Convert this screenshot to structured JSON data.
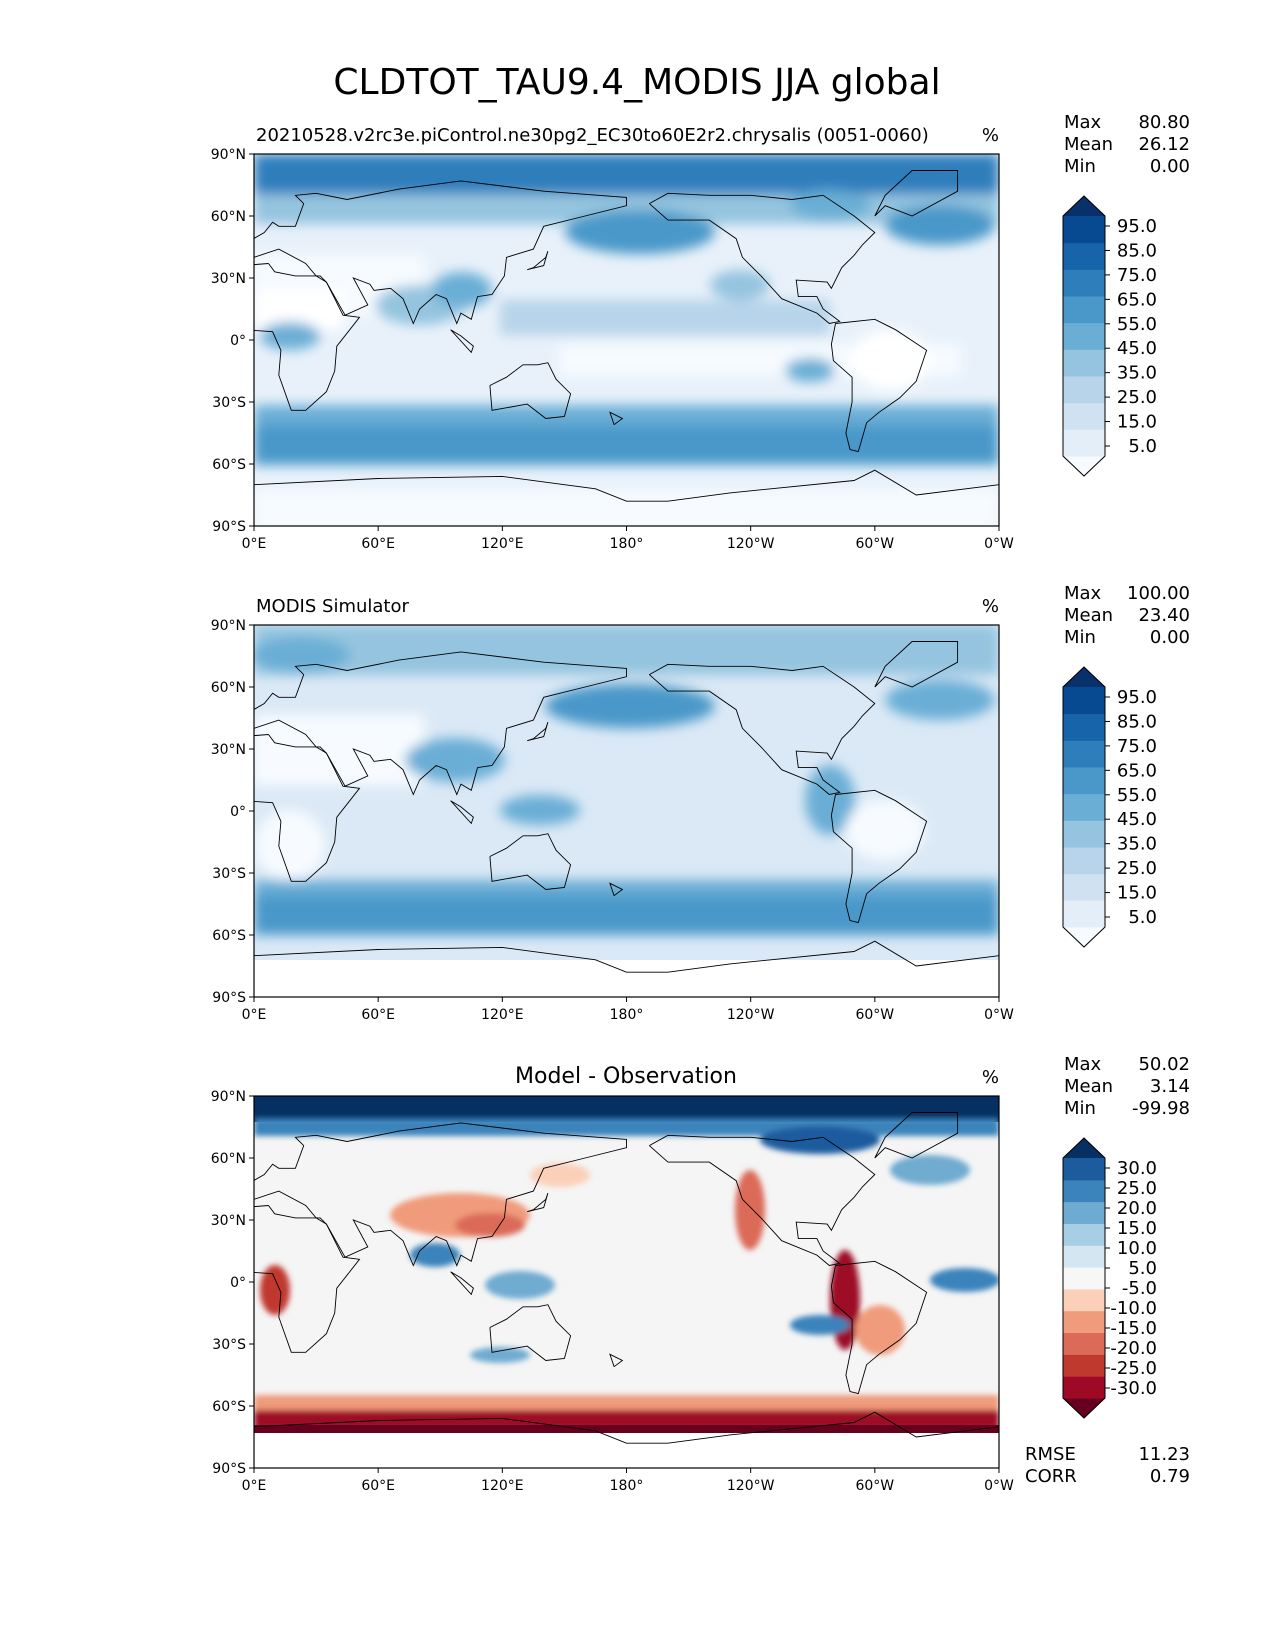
{
  "title": "CLDTOT_TAU9.4_MODIS JJA global",
  "lat_ticks": [
    "90°N",
    "60°N",
    "30°N",
    "0°",
    "30°S",
    "60°S",
    "90°S"
  ],
  "lon_ticks": [
    "0°E",
    "60°E",
    "120°E",
    "180°",
    "120°W",
    "60°W",
    "0°W"
  ],
  "stat_labels": {
    "max": "Max",
    "mean": "Mean",
    "min": "Min",
    "rmse": "RMSE",
    "corr": "CORR"
  },
  "panels": [
    {
      "id": "model",
      "left_title": "20210528.v2rc3e.piControl.ne30pg2_EC30to60E2r2.chrysalis (0051-0060)",
      "center_title": "",
      "units": "%",
      "stats": {
        "max": "80.80",
        "mean": "26.12",
        "min": "0.00"
      },
      "colorbar_labels": [
        "95.0",
        "85.0",
        "75.0",
        "65.0",
        "55.0",
        "45.0",
        "35.0",
        "25.0",
        "15.0",
        "5.0"
      ],
      "colorbar_colors": [
        "#f7fbff",
        "#e3eef9",
        "#d0e1f2",
        "#b7d4ea",
        "#94c4df",
        "#6aaed6",
        "#4a98c9",
        "#2e7ebc",
        "#1764ab",
        "#084a91",
        "#08306b"
      ]
    },
    {
      "id": "obs",
      "left_title": "MODIS Simulator",
      "center_title": "",
      "units": "%",
      "stats": {
        "max": "100.00",
        "mean": "23.40",
        "min": "0.00"
      },
      "colorbar_labels": [
        "95.0",
        "85.0",
        "75.0",
        "65.0",
        "55.0",
        "45.0",
        "35.0",
        "25.0",
        "15.0",
        "5.0"
      ],
      "colorbar_colors": [
        "#f7fbff",
        "#e3eef9",
        "#d0e1f2",
        "#b7d4ea",
        "#94c4df",
        "#6aaed6",
        "#4a98c9",
        "#2e7ebc",
        "#1764ab",
        "#084a91",
        "#08306b"
      ]
    },
    {
      "id": "diff",
      "left_title": "",
      "center_title": "Model - Observation",
      "units": "%",
      "stats": {
        "max": "50.02",
        "mean": "3.14",
        "min": "-99.98",
        "rmse": "11.23",
        "corr": "0.79"
      },
      "colorbar_labels": [
        "30.0",
        "25.0",
        "20.0",
        "15.0",
        "10.0",
        "5.0",
        "-5.0",
        "-10.0",
        "-15.0",
        "-20.0",
        "-25.0",
        "-30.0"
      ],
      "colorbar_colors": [
        "#67001f",
        "#9e0a26",
        "#c0392f",
        "#dc6a58",
        "#f09b7c",
        "#fbd0b9",
        "#f7f7f7",
        "#d4e6f1",
        "#a6cee4",
        "#6fabd0",
        "#3b83bb",
        "#1c5b9e",
        "#053061"
      ]
    }
  ]
}
